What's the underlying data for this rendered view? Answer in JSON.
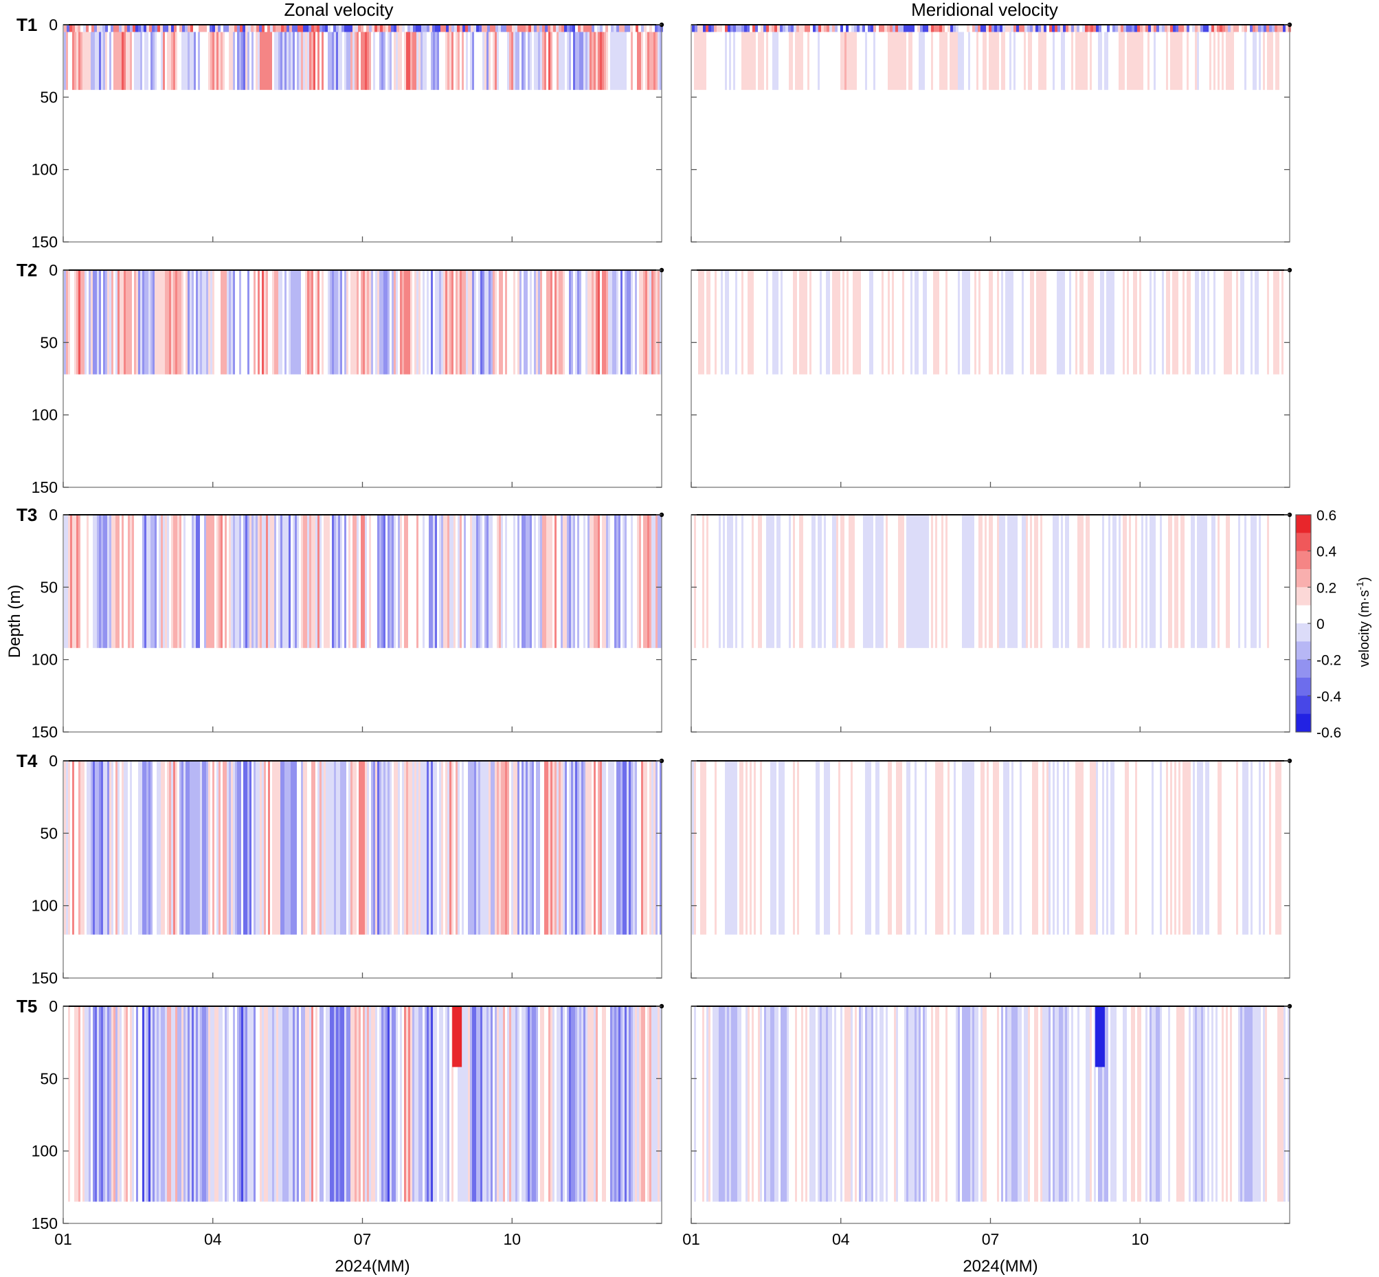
{
  "figure": {
    "titles": {
      "left": "Zonal velocity",
      "right": "Meridional velocity"
    },
    "ylabel": "Depth (m)",
    "xlabel": "2024(MM)",
    "colorbar": {
      "label": "velocity (m·s",
      "label_exponent": "-1",
      "label_close": ")",
      "ticks": [
        "0.6",
        "0.4",
        "0.2",
        "0",
        "-0.2",
        "-0.4",
        "-0.6"
      ],
      "colors": [
        "#e8262b",
        "#f0585a",
        "#f58585",
        "#f9afae",
        "#fcd8d7",
        "#ffffff",
        "#dcdcf9",
        "#b7b7f5",
        "#9292f0",
        "#6d6dec",
        "#4747e7",
        "#2222e3"
      ],
      "range": [
        -0.6,
        0.6
      ]
    }
  },
  "chart_data": [
    {
      "panel": "T1",
      "component": "Zonal velocity",
      "type": "heatmap",
      "x_ticks": [
        "01",
        "04",
        "07",
        "10"
      ],
      "y_ticks": [
        "0",
        "50",
        "100",
        "150"
      ],
      "ylim": [
        150,
        0
      ],
      "data_max_depth": 45,
      "surface_layer_depth": 5,
      "mean_value": 0.05,
      "spread": 0.3,
      "colors": {
        "positive": "#e8262b",
        "negative": "#2222e3"
      }
    },
    {
      "panel": "T1",
      "component": "Meridional velocity",
      "type": "heatmap",
      "x_ticks": [
        "01",
        "04",
        "07",
        "10"
      ],
      "y_ticks": [],
      "ylim": [
        150,
        0
      ],
      "data_max_depth": 45,
      "surface_layer_depth": 5,
      "mean_value": 0.08,
      "spread": 0.1
    },
    {
      "panel": "T2",
      "component": "Zonal velocity",
      "type": "heatmap",
      "x_ticks": [
        "01",
        "04",
        "07",
        "10"
      ],
      "y_ticks": [
        "0",
        "50",
        "100",
        "150"
      ],
      "ylim": [
        150,
        0
      ],
      "data_max_depth": 72,
      "mean_value": 0.05,
      "spread": 0.3
    },
    {
      "panel": "T2",
      "component": "Meridional velocity",
      "type": "heatmap",
      "x_ticks": [
        "01",
        "04",
        "07",
        "10"
      ],
      "y_ticks": [],
      "ylim": [
        150,
        0
      ],
      "data_max_depth": 72,
      "mean_value": 0.06,
      "spread": 0.1
    },
    {
      "panel": "T3",
      "component": "Zonal velocity",
      "type": "heatmap",
      "x_ticks": [
        "01",
        "04",
        "07",
        "10"
      ],
      "y_ticks": [
        "0",
        "50",
        "100",
        "150"
      ],
      "ylim": [
        150,
        0
      ],
      "data_max_depth": 92,
      "mean_value": 0.0,
      "spread": 0.3
    },
    {
      "panel": "T3",
      "component": "Meridional velocity",
      "type": "heatmap",
      "x_ticks": [
        "01",
        "04",
        "07",
        "10"
      ],
      "y_ticks": [],
      "ylim": [
        150,
        0
      ],
      "data_max_depth": 92,
      "mean_value": 0.04,
      "spread": 0.1
    },
    {
      "panel": "T4",
      "component": "Zonal velocity",
      "type": "heatmap",
      "x_ticks": [
        "01",
        "04",
        "07",
        "10"
      ],
      "y_ticks": [
        "0",
        "50",
        "100",
        "150"
      ],
      "ylim": [
        150,
        0
      ],
      "data_max_depth": 120,
      "mean_value": -0.02,
      "spread": 0.3
    },
    {
      "panel": "T4",
      "component": "Meridional velocity",
      "type": "heatmap",
      "x_ticks": [
        "01",
        "04",
        "07",
        "10"
      ],
      "y_ticks": [],
      "ylim": [
        150,
        0
      ],
      "data_max_depth": 120,
      "mean_value": 0.05,
      "spread": 0.1
    },
    {
      "panel": "T5",
      "component": "Zonal velocity",
      "type": "heatmap",
      "x_ticks": [
        "01",
        "04",
        "07",
        "10"
      ],
      "y_ticks": [
        "0",
        "50",
        "100",
        "150"
      ],
      "ylim": [
        150,
        0
      ],
      "data_max_depth": 135,
      "mean_value": -0.05,
      "spread": 0.3,
      "features": [
        {
          "value": 0.6,
          "month": 8.8,
          "depth_range": [
            0,
            42
          ]
        }
      ]
    },
    {
      "panel": "T5",
      "component": "Meridional velocity",
      "type": "heatmap",
      "x_ticks": [
        "01",
        "04",
        "07",
        "10"
      ],
      "y_ticks": [],
      "ylim": [
        150,
        0
      ],
      "data_max_depth": 135,
      "mean_value": 0.0,
      "spread": 0.15,
      "features": [
        {
          "value": -0.6,
          "month": 9.1,
          "depth_range": [
            0,
            42
          ]
        }
      ]
    }
  ]
}
